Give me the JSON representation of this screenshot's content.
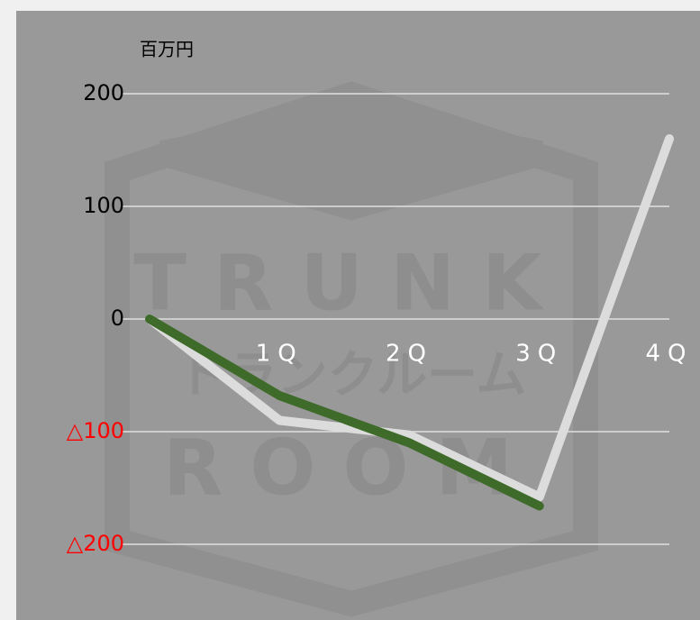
{
  "chart_data": {
    "type": "line",
    "unit_label": "百万円",
    "watermark": [
      "TRUNK",
      "トランクルーム",
      "ROOM"
    ],
    "categories": [
      null,
      "1Q",
      "2Q",
      "3Q",
      "4Q"
    ],
    "series": [
      {
        "name": null,
        "color": "#dcdcdc",
        "values": [
          0,
          -90,
          -103,
          -158,
          160
        ]
      },
      {
        "name": null,
        "color": "#3e6b2a",
        "values": [
          0,
          -68,
          -110,
          -166,
          null
        ]
      }
    ],
    "ylim": [
      -200,
      200
    ],
    "yticks": [
      {
        "value": -200,
        "label": "△200"
      },
      {
        "value": -100,
        "label": "△100"
      },
      0,
      100,
      200
    ],
    "negative_tick_color": "#ff0000",
    "grid": true
  }
}
